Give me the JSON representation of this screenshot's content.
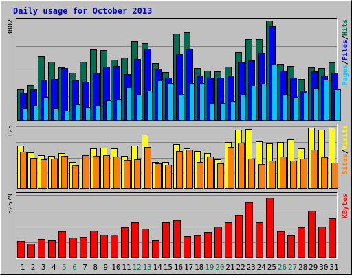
{
  "chart_data": {
    "type": "bar",
    "title": "Daily usage for October 2013",
    "categories": [
      "1",
      "2",
      "3",
      "4",
      "5",
      "6",
      "7",
      "8",
      "9",
      "10",
      "11",
      "12",
      "13",
      "14",
      "15",
      "16",
      "17",
      "18",
      "19",
      "20",
      "21",
      "22",
      "23",
      "24",
      "25",
      "26",
      "27",
      "28",
      "29",
      "30",
      "31"
    ],
    "weekend_days": [
      "5",
      "6",
      "12",
      "13",
      "19",
      "20",
      "26",
      "27"
    ],
    "colors": {
      "background": "#c0c0c0",
      "title": "#0000cc",
      "hits": "#006e50",
      "files": "#0000ff",
      "pages": "#00c8ff",
      "visits": "#ffff00",
      "sites": "#ff8000",
      "kbytes": "#ff0000",
      "weekday_label": "#000000",
      "weekend_label": "#006e50"
    },
    "panels": [
      {
        "id": "hits-files-pages",
        "ymax_label": "3802",
        "ymax": 3802,
        "legend": [
          {
            "text": "Pages",
            "color": "#00c8ff"
          },
          {
            "text": "/",
            "color": "#000000"
          },
          {
            "text": "Files",
            "color": "#0000ff"
          },
          {
            "text": "/",
            "color": "#000000"
          },
          {
            "text": "Hits",
            "color": "#006e50"
          }
        ],
        "series": [
          {
            "name": "Hits",
            "color": "#006e50",
            "values": [
              1190,
              1350,
              2440,
              2240,
              2040,
              1830,
              2250,
              2720,
              2690,
              2310,
              2390,
              3030,
              2940,
              2190,
              1860,
              3320,
              3350,
              2010,
              1890,
              1870,
              2050,
              2610,
              3100,
              3090,
              3800,
              2170,
              2090,
              1590,
              2040,
              2000,
              2220
            ]
          },
          {
            "name": "Files",
            "color": "#0000ff",
            "values": [
              1060,
              1190,
              1560,
              1580,
              2000,
              1540,
              1490,
              1830,
              2060,
              2090,
              1760,
              2340,
              2740,
              1980,
              1640,
              2530,
              2730,
              1710,
              1630,
              1650,
              1710,
              2240,
              2300,
              2570,
              3600,
              1900,
              1630,
              1150,
              1870,
              1710,
              1810
            ]
          },
          {
            "name": "Pages",
            "color": "#00c8ff",
            "values": [
              460,
              580,
              880,
              460,
              390,
              630,
              520,
              570,
              770,
              830,
              1270,
              1000,
              1150,
              1530,
              1430,
              1010,
              1430,
              1430,
              650,
              680,
              750,
              1000,
              1320,
              1400,
              2140,
              1000,
              880,
              1070,
              1260,
              1550,
              1200
            ]
          }
        ]
      },
      {
        "id": "visits-sites",
        "ymax_label": "125",
        "ymax": 125,
        "legend": [
          {
            "text": "Sites",
            "color": "#ff8000"
          },
          {
            "text": "/",
            "color": "#000000"
          },
          {
            "text": "Visits",
            "color": "#ffff00"
          }
        ],
        "series": [
          {
            "name": "Visits",
            "color": "#ffff00",
            "values": [
              87,
              73,
              67,
              66,
              72,
              54,
              60,
              81,
              82,
              81,
              66,
              87,
              108,
              54,
              53,
              89,
              81,
              76,
              72,
              59,
              94,
              118,
              120,
              95,
              91,
              94,
              99,
              81,
              122,
              118,
              122
            ]
          },
          {
            "name": "Sites",
            "color": "#ff8000",
            "values": [
              74,
              62,
              59,
              60,
              66,
              47,
              67,
              66,
              67,
              65,
              58,
              59,
              84,
              51,
              48,
              75,
              78,
              53,
              64,
              51,
              84,
              92,
              61,
              49,
              57,
              64,
              57,
              61,
              78,
              63,
              52
            ]
          }
        ]
      },
      {
        "id": "kbytes",
        "ymax_label": "52579",
        "ymax": 52579,
        "legend": [
          {
            "text": "KBytes",
            "color": "#ff0000"
          }
        ],
        "series": [
          {
            "name": "KBytes",
            "color": "#ff0000",
            "values": [
              14240,
              11940,
              15900,
              14900,
              22120,
              17280,
              17840,
              22800,
              19200,
              19500,
              25770,
              29500,
              24780,
              14820,
              29850,
              31300,
              18110,
              18910,
              21960,
              26500,
              29600,
              35900,
              46080,
              29900,
              50120,
              22420,
              18840,
              25770,
              39280,
              26420,
              33020
            ]
          }
        ]
      }
    ]
  }
}
